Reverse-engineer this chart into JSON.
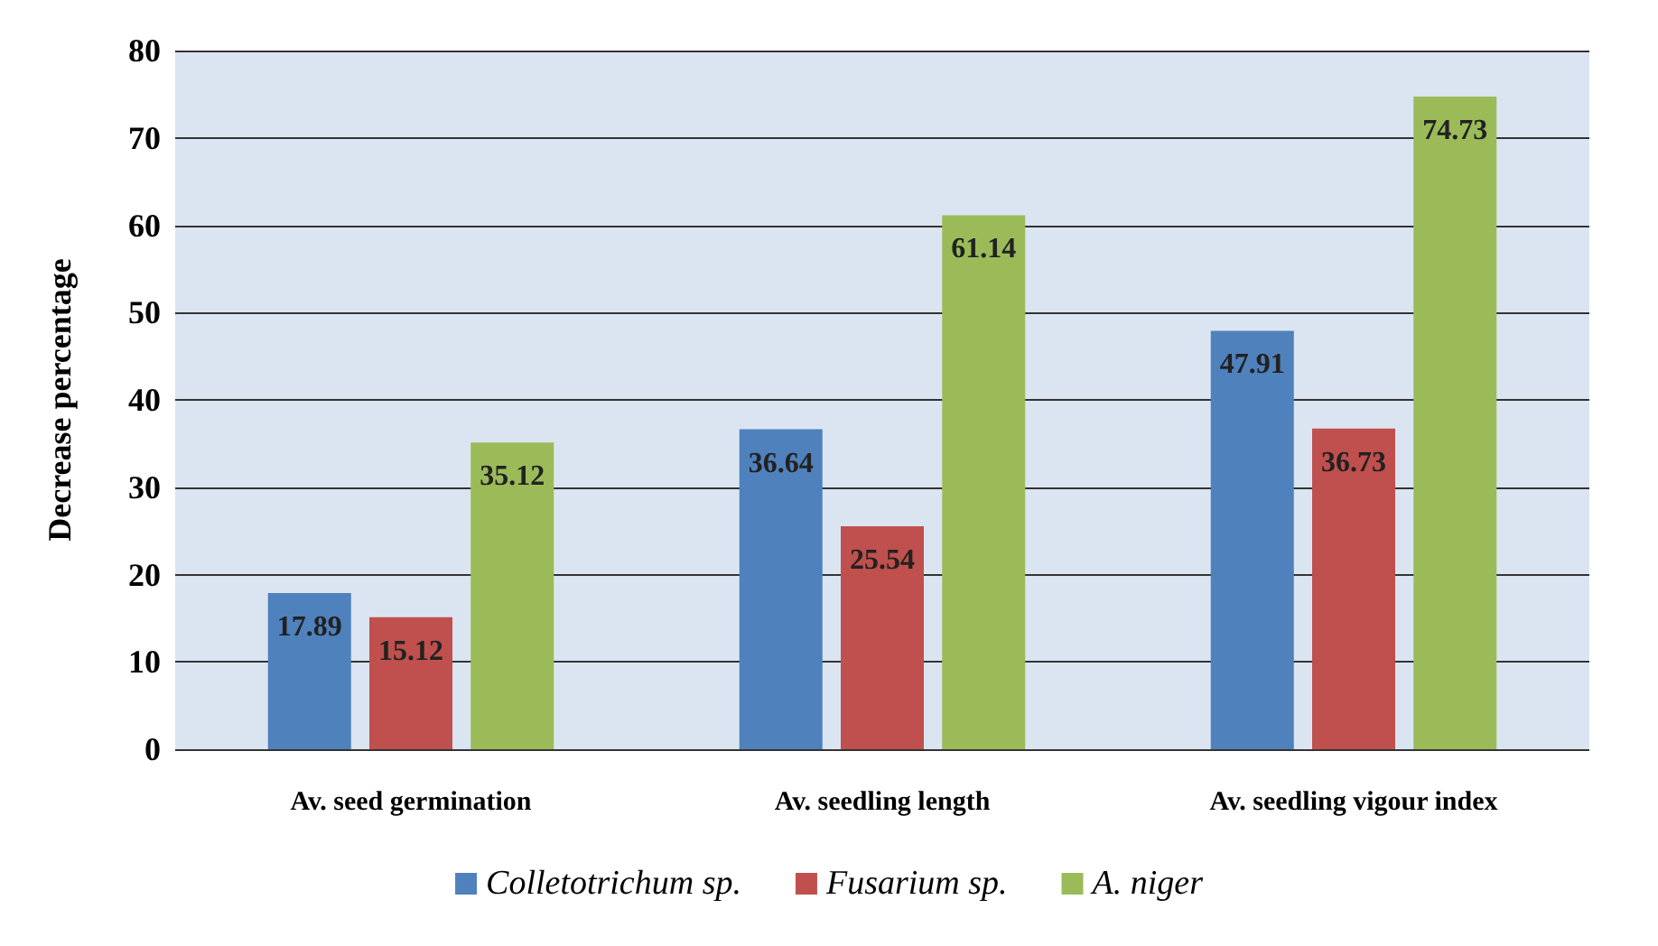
{
  "chart_data": {
    "type": "bar",
    "ylabel": "Decrease percentage",
    "categories": [
      "Av. seed germination",
      "Av. seedling length",
      "Av. seedling vigour index"
    ],
    "series": [
      {
        "name": "Colletotrichum sp.",
        "color": "#4f81bd",
        "values": [
          17.89,
          36.64,
          47.91
        ]
      },
      {
        "name": "Fusarium sp.",
        "color": "#c0504d",
        "values": [
          15.12,
          25.54,
          36.73
        ]
      },
      {
        "name": "A. niger",
        "color": "#9bbb59",
        "values": [
          35.12,
          61.14,
          74.73
        ]
      }
    ],
    "ylim": [
      0,
      80
    ],
    "yticks": [
      0,
      10,
      20,
      30,
      40,
      50,
      60,
      70,
      80
    ],
    "grid": "y",
    "legend": "bottom",
    "data_labels": true
  }
}
